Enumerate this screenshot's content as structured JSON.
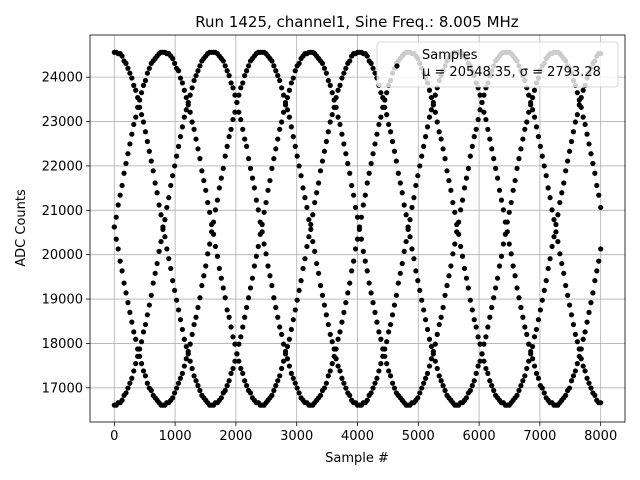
{
  "chart_data": {
    "type": "scatter",
    "title": "Run 1425, channel1, Sine Freq.: 8.005 MHz",
    "xlabel": "Sample #",
    "ylabel": "ADC Counts",
    "xlim": [
      -400,
      8400
    ],
    "ylim": [
      16230,
      24950
    ],
    "xticks": [
      0,
      1000,
      2000,
      3000,
      4000,
      5000,
      6000,
      7000,
      8000
    ],
    "yticks": [
      17000,
      18000,
      19000,
      20000,
      21000,
      22000,
      23000,
      24000
    ],
    "grid": true,
    "legend": {
      "placement": "upper-right",
      "entries": [
        {
          "label": "Samples",
          "stats": "μ = 20548.35, σ = 2793.28"
        }
      ]
    },
    "series": [
      {
        "name": "Samples",
        "color": "#000000",
        "marker": "circle",
        "model": {
          "kind": "four interleaved sine tracks",
          "mean": 20600,
          "amplitude": 3980,
          "period_samples": 3225,
          "x_start": 0,
          "x_end": 8000,
          "x_step": 32,
          "phases_deg": [
            0,
            270,
            180,
            90
          ],
          "quantization_step": 55
        }
      }
    ]
  }
}
